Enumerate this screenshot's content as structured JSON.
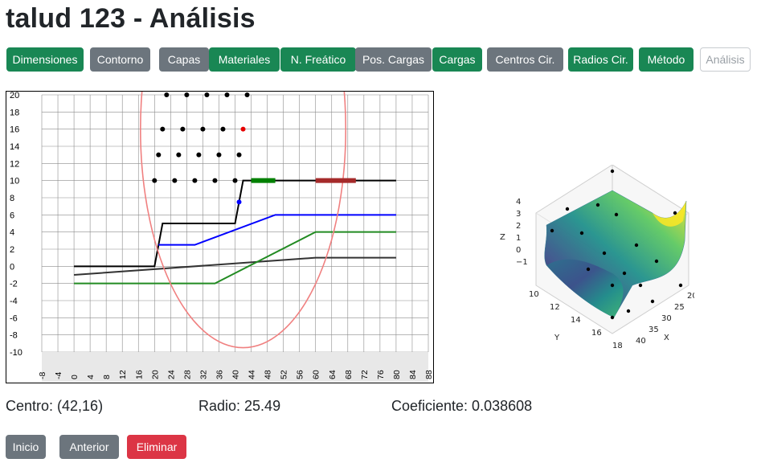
{
  "page": {
    "title": "talud 123 - Análisis"
  },
  "toolbar": {
    "buttons": [
      {
        "label": "Dimensiones",
        "style": "green"
      },
      {
        "label": "Contorno",
        "style": "gray"
      },
      {
        "label": "Capas",
        "style": "gray"
      },
      {
        "label": "Materiales",
        "style": "green"
      },
      {
        "label": "N. Freático",
        "style": "green"
      },
      {
        "label": "Pos. Cargas",
        "style": "gray"
      },
      {
        "label": "Cargas",
        "style": "green"
      },
      {
        "label": "Centros Cir.",
        "style": "gray"
      },
      {
        "label": "Radios Cir.",
        "style": "green"
      },
      {
        "label": "Método",
        "style": "green"
      },
      {
        "label": "Análisis",
        "style": "outline-disabled"
      }
    ]
  },
  "results": {
    "centro": "Centro: (42,16)",
    "radio": "Radio: 25.49",
    "coeficiente": "Coeficiente: 0.038608"
  },
  "nav": {
    "inicio": "Inicio",
    "anterior": "Anterior",
    "eliminar": "Eliminar"
  },
  "colors": {
    "green": "#198754",
    "gray": "#6c757d",
    "red": "#dc3545",
    "circle": "#f08080",
    "water": "#0000ff",
    "layer": "#228b22",
    "load_green": "#008000",
    "load_red": "#a52a2a"
  },
  "chart_data": [
    {
      "type": "line",
      "xlim": [
        -8,
        88
      ],
      "ylim": [
        -10,
        20
      ],
      "x_ticks": [
        "-8",
        "-4",
        "0",
        "4",
        "8",
        "12",
        "16",
        "20",
        "24",
        "28",
        "32",
        "36",
        "40",
        "44",
        "48",
        "52",
        "56",
        "60",
        "64",
        "68",
        "72",
        "76",
        "80",
        "84",
        "88"
      ],
      "y_ticks": [
        "20",
        "18",
        "16",
        "14",
        "12",
        "10",
        "8",
        "6",
        "4",
        "2",
        "0",
        "-2",
        "-4",
        "-6",
        "-8",
        "-10"
      ],
      "grid": true,
      "series": [
        {
          "role": "contour",
          "color": "#000000",
          "points": [
            [
              0,
              0
            ],
            [
              20,
              0
            ],
            [
              22,
              5
            ],
            [
              40,
              5
            ],
            [
              42,
              10
            ],
            [
              80,
              10
            ]
          ]
        },
        {
          "role": "layer-1",
          "color": "#333333",
          "points": [
            [
              0,
              -1
            ],
            [
              60,
              1
            ],
            [
              80,
              1
            ]
          ]
        },
        {
          "role": "layer-2",
          "color": "#228b22",
          "points": [
            [
              0,
              -2
            ],
            [
              35,
              -2
            ],
            [
              60,
              4
            ],
            [
              80,
              4
            ]
          ]
        },
        {
          "role": "phreatic",
          "color": "#0000ff",
          "points": [
            [
              21,
              2.5
            ],
            [
              30,
              2.5
            ],
            [
              50,
              6
            ],
            [
              80,
              6
            ]
          ]
        }
      ],
      "loads": [
        {
          "color": "#008000",
          "x": [
            44,
            50
          ],
          "y": 10
        },
        {
          "color": "#a52a2a",
          "x": [
            60,
            70
          ],
          "y": 10
        }
      ],
      "circle": {
        "center": [
          42,
          16
        ],
        "radius": 25.49,
        "color": "#f08080"
      },
      "centers_grid": {
        "rows": [
          {
            "y": 20,
            "x": [
              23,
              28,
              33,
              38,
              43
            ]
          },
          {
            "y": 16,
            "x": [
              22,
              27,
              32,
              37,
              42
            ]
          },
          {
            "y": 13,
            "x": [
              21,
              26,
              31,
              36,
              41
            ]
          },
          {
            "y": 10,
            "x": [
              20,
              25,
              30,
              35,
              40
            ]
          }
        ],
        "selected": [
          42,
          16
        ],
        "foot_point": [
          41,
          7.5
        ]
      }
    },
    {
      "type": "surface",
      "xlabel": "X",
      "ylabel": "Y",
      "zlabel": "Z",
      "x_ticks": [
        "20",
        "25",
        "30",
        "35",
        "40"
      ],
      "y_ticks": [
        "10",
        "12",
        "14",
        "16",
        "18"
      ],
      "z_ticks": [
        "4",
        "3",
        "2",
        "1",
        "0",
        "−1"
      ],
      "colormap": "viridis"
    }
  ]
}
